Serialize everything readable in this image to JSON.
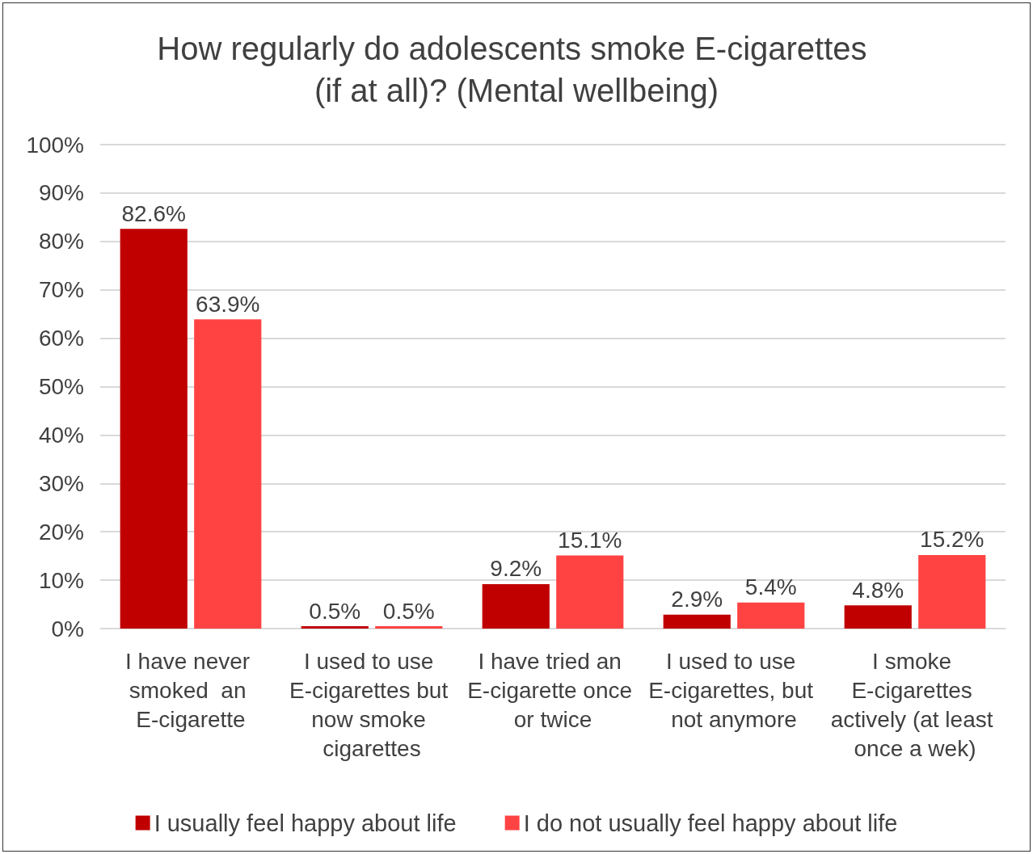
{
  "chart_data": {
    "type": "bar",
    "title": "How regularly do adolescents smoke E-cigarettes (if at all)? (Mental wellbeing)",
    "categories": [
      "I have never smoked  an E-cigarette",
      "I used to use E-cigarettes but now smoke cigarettes",
      "I have tried an E-cigarette once or twice",
      "I used to use E-cigarettes, but not anymore",
      "I smoke E-cigarettes actively (at least once a wek)"
    ],
    "series": [
      {
        "name": "I usually feel happy about life",
        "color": "#c00000",
        "values": [
          82.6,
          0.5,
          9.2,
          2.9,
          4.8
        ],
        "value_labels": [
          "82.6%",
          "0.5%",
          "9.2%",
          "2.9%",
          "4.8%"
        ]
      },
      {
        "name": "I do not usually feel happy about life",
        "color": "#ff4343",
        "values": [
          63.9,
          0.5,
          15.1,
          5.4,
          15.2
        ],
        "value_labels": [
          "63.9%",
          "0.5%",
          "15.1%",
          "5.4%",
          "15.2%"
        ]
      }
    ],
    "ylim": [
      0,
      100
    ],
    "yticks": [
      {
        "value": 0,
        "label": "0%"
      },
      {
        "value": 10,
        "label": "10%"
      },
      {
        "value": 20,
        "label": "20%"
      },
      {
        "value": 30,
        "label": "30%"
      },
      {
        "value": 40,
        "label": "40%"
      },
      {
        "value": 50,
        "label": "50%"
      },
      {
        "value": 60,
        "label": "60%"
      },
      {
        "value": 70,
        "label": "70%"
      },
      {
        "value": 80,
        "label": "80%"
      },
      {
        "value": 90,
        "label": "90%"
      },
      {
        "value": 100,
        "label": "100%"
      }
    ],
    "grid": "y",
    "legend": "bottom"
  }
}
